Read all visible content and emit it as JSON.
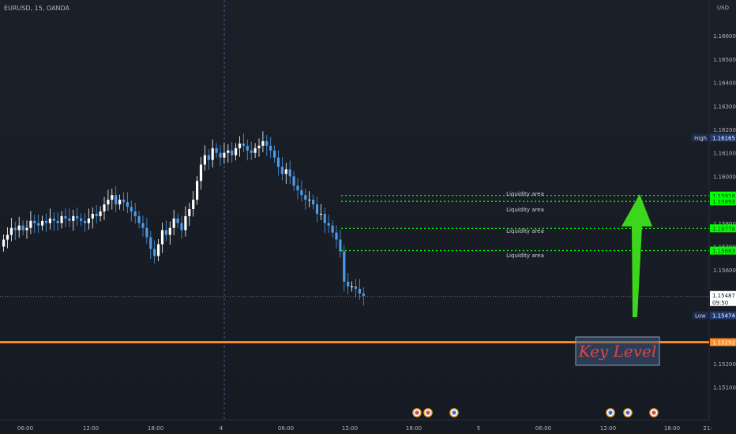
{
  "symbol_label": "EURUSD, 15, OANDA",
  "currency": "USD",
  "price_ticks": [
    "1.16600",
    "1.16500",
    "1.16400",
    "1.16300",
    "1.16200",
    "1.16100",
    "1.16000",
    "1.15900",
    "1.15800",
    "1.15700",
    "1.15600",
    "1.15500",
    "1.15400",
    "1.15300",
    "1.15200",
    "1.15100"
  ],
  "time_ticks": [
    "06:00",
    "12:00",
    "18:00",
    "4",
    "06:00",
    "12:00",
    "18:00",
    "5",
    "06:00",
    "12:00",
    "18:00",
    "21:"
  ],
  "markers": {
    "high": {
      "label": "High",
      "value": "1.16165"
    },
    "current": {
      "value": "1.15487",
      "countdown": "09:50"
    },
    "low": {
      "label": "Low",
      "value": "1.15474"
    }
  },
  "liquidity_levels": [
    {
      "label": "Liquidity area",
      "value": "1.15918"
    },
    {
      "label": "Liquidity area",
      "value": "1.15893"
    },
    {
      "label": "Liquidity area",
      "value": "1.15778"
    },
    {
      "label": "Liquidity area",
      "value": "1.15683"
    }
  ],
  "key_level": {
    "label": "Key Level",
    "value": "1.15292"
  },
  "colors": {
    "bull": "#ffffff",
    "bear": "#4d9be6",
    "liquidity": "#00ff00",
    "key_level": "#ff8c24",
    "arrow": "#3cd61c",
    "key_text": "#e84040"
  },
  "chart_data": {
    "type": "candlestick",
    "interval": "15",
    "y_range": [
      1.15035,
      1.16685
    ],
    "closes": [
      1.1573,
      1.1575,
      1.1578,
      1.1577,
      1.1579,
      1.1577,
      1.1578,
      1.1581,
      1.158,
      1.1579,
      1.1581,
      1.158,
      1.1582,
      1.1581,
      1.158,
      1.1583,
      1.1582,
      1.1581,
      1.1583,
      1.1582,
      1.1581,
      1.158,
      1.1582,
      1.1584,
      1.1583,
      1.1585,
      1.1588,
      1.159,
      1.1592,
      1.1588,
      1.159,
      1.1589,
      1.1587,
      1.1585,
      1.1583,
      1.158,
      1.1578,
      1.1574,
      1.1569,
      1.1566,
      1.1571,
      1.1577,
      1.1575,
      1.1578,
      1.1582,
      1.158,
      1.1577,
      1.1583,
      1.1586,
      1.159,
      1.1598,
      1.1605,
      1.1609,
      1.1607,
      1.1612,
      1.161,
      1.1608,
      1.161,
      1.1611,
      1.1609,
      1.1612,
      1.1614,
      1.1613,
      1.1611,
      1.161,
      1.1612,
      1.1613,
      1.1615,
      1.1613,
      1.1611,
      1.1608,
      1.1604,
      1.1601,
      1.1603,
      1.16,
      1.1596,
      1.1594,
      1.1592,
      1.159,
      1.159,
      1.1588,
      1.1584,
      1.1584,
      1.158,
      1.1579,
      1.1576,
      1.1573,
      1.1568,
      1.1555,
      1.1553,
      1.1553,
      1.1552,
      1.155,
      1.1549
    ]
  }
}
